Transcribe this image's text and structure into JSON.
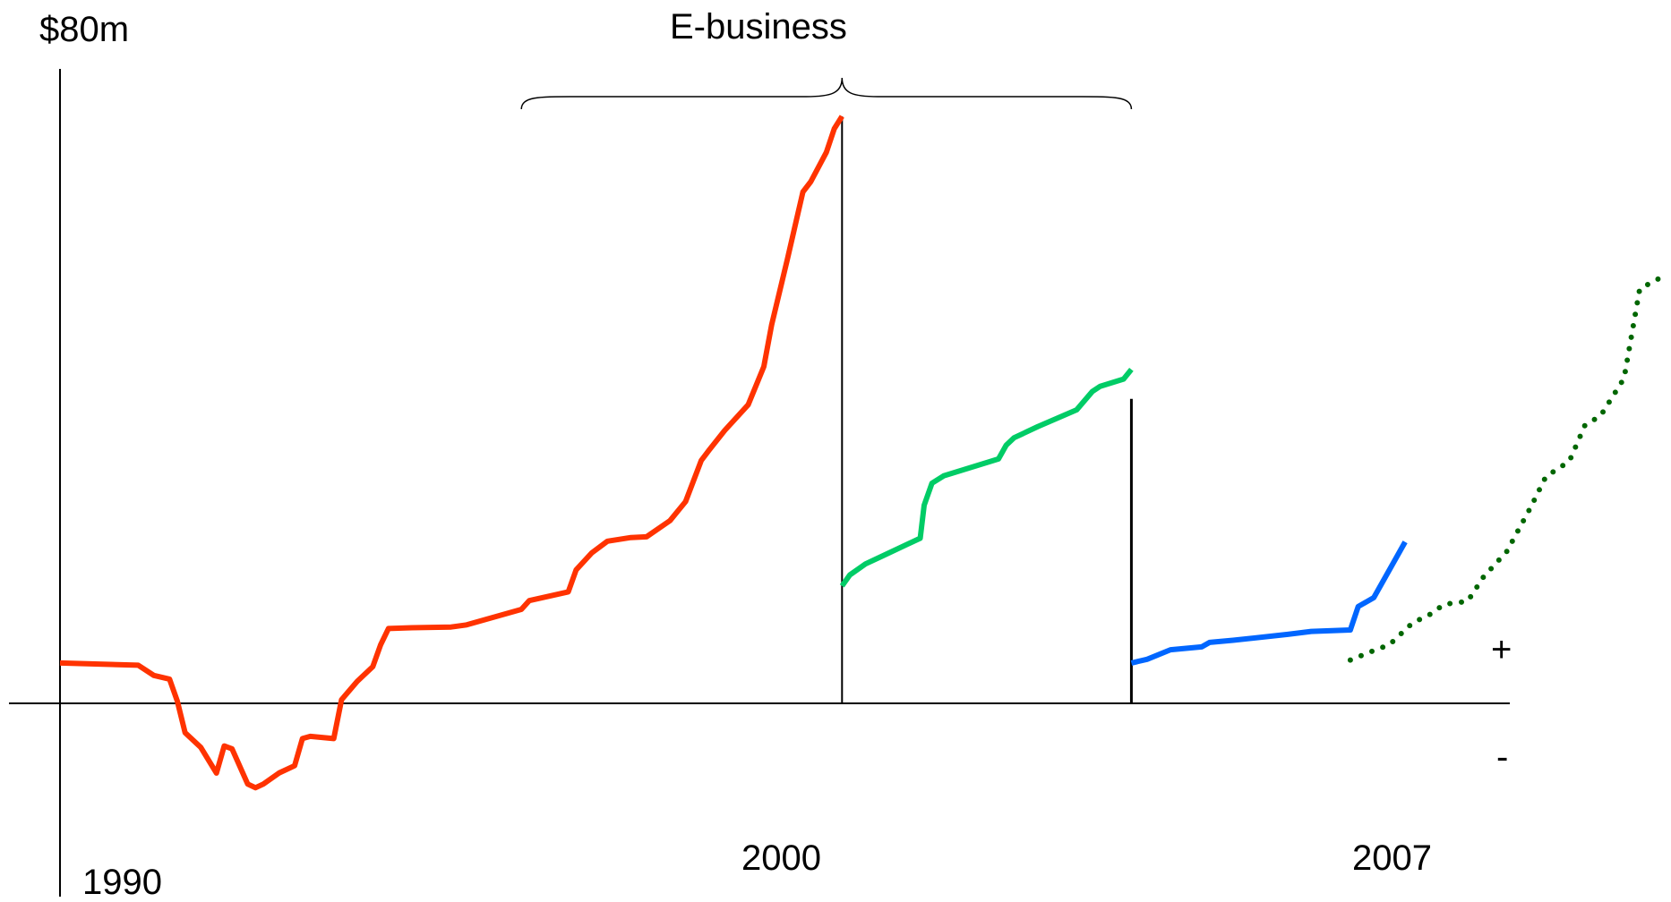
{
  "chart_data": {
    "type": "line",
    "title": "",
    "ylabel": "$80m",
    "xlabel": "",
    "bracket_label": "E-business",
    "sign_labels": {
      "positive": "+",
      "negative": "-"
    },
    "x_ticks": [
      {
        "label": "1990",
        "x": 1990
      },
      {
        "label": "2000",
        "x": 2000
      },
      {
        "label": "2007",
        "x": 2007
      }
    ],
    "xlim": [
      1990,
      2010.6
    ],
    "ylim": [
      -25,
      80
    ],
    "grid": false,
    "legend": "none",
    "bracket": {
      "from": 1995.9,
      "to": 2003.7,
      "peak": 2000
    },
    "dividers": [
      {
        "x": 2000,
        "ytop": 80
      },
      {
        "x": 2003.7,
        "ytop": 41.5
      }
    ],
    "series": [
      {
        "color": "#ff3300",
        "style": "solid",
        "x": [
          1990,
          1991,
          1991.2,
          1991.4,
          1991.5,
          1991.6,
          1991.8,
          1992,
          1992.1,
          1992.2,
          1992.4,
          1992.5,
          1992.6,
          1992.8,
          1993,
          1993.1,
          1993.2,
          1993.5,
          1993.6,
          1993.8,
          1994,
          1994.1,
          1994.2,
          1994.5,
          1995,
          1995.2,
          1995.9,
          1996,
          1996.5,
          1996.6,
          1996.8,
          1997,
          1997.3,
          1997.5,
          1997.8,
          1998,
          1998.2,
          1998.3,
          1998.5,
          1998.8,
          1999,
          1999.1,
          1999.3,
          1999.5,
          1999.6,
          1999.8,
          1999.9,
          2000
        ],
        "y": [
          5.5,
          5.2,
          3.8,
          3.3,
          0.3,
          -4,
          -6,
          -9.5,
          -5.8,
          -6.2,
          -11,
          -11.5,
          -11,
          -9.5,
          -8.5,
          -4.8,
          -4.5,
          -4.8,
          0.5,
          3,
          5,
          8,
          10.2,
          10.3,
          10.4,
          10.7,
          12.8,
          14,
          15.2,
          18.2,
          20.5,
          22.1,
          22.6,
          22.7,
          24.9,
          27.5,
          33.1,
          34.5,
          37.2,
          40.7,
          45.9,
          51.6,
          60.5,
          69.7,
          71.1,
          75.1,
          78.3,
          80
        ]
      },
      {
        "color": "#00cc66",
        "style": "solid",
        "x": [
          2000,
          2000.1,
          2000.3,
          2000.5,
          2001,
          2001.05,
          2001.15,
          2001.3,
          2002,
          2002.1,
          2002.2,
          2002.5,
          2003,
          2003.2,
          2003.3,
          2003.6,
          2003.7
        ],
        "y": [
          16,
          17.5,
          19,
          20,
          22.5,
          27,
          30,
          31,
          33.3,
          35.2,
          36.2,
          37.7,
          40,
          42.5,
          43.2,
          44.2,
          45.5
        ]
      },
      {
        "color": "#0066ff",
        "style": "solid",
        "x": [
          2003.7,
          2003.9,
          2004.2,
          2004.6,
          2004.7,
          2005,
          2005.7,
          2006,
          2006.5,
          2006.6,
          2006.8,
          2007.2
        ],
        "y": [
          5.5,
          6,
          7.3,
          7.7,
          8.3,
          8.6,
          9.4,
          9.8,
          10,
          13.2,
          14.4,
          22
        ]
      },
      {
        "color": "#006600",
        "style": "dotted",
        "x": [
          2006.5,
          2006.8,
          2007,
          2007.3,
          2007.5,
          2007.7,
          2008,
          2008.2,
          2008.5,
          2008.8,
          2009,
          2009.3,
          2009.5,
          2009.7,
          2010,
          2010.2,
          2010.5
        ],
        "y": [
          5.9,
          7.2,
          8,
          11,
          12,
          13.5,
          13.9,
          17.2,
          20.7,
          26.6,
          30.9,
          33,
          37.9,
          39.2,
          44.3,
          56.5,
          58.2
        ]
      }
    ]
  }
}
